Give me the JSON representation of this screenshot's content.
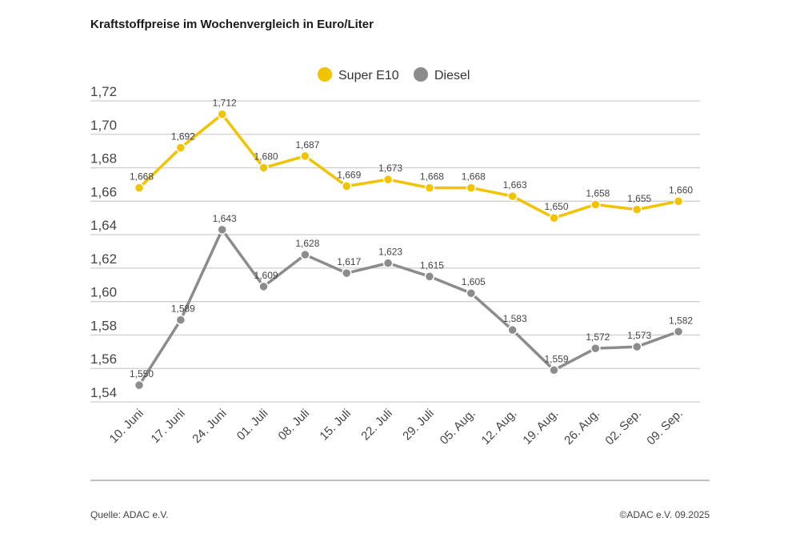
{
  "chart_data": {
    "type": "line",
    "title": "Kraftstoffpreise im Wochenvergleich in Euro/Liter",
    "xlabel": "",
    "ylabel": "",
    "categories": [
      "10. Juni",
      "17. Juni",
      "24. Juni",
      "01. Juli",
      "08. Juli",
      "15. Juli",
      "22. Juli",
      "29. Juli",
      "05. Aug.",
      "12. Aug.",
      "19. Aug.",
      "26. Aug.",
      "02. Sep.",
      "09. Sep."
    ],
    "series": [
      {
        "name": "Super E10",
        "color": "#f2c300",
        "values": [
          1.668,
          1.692,
          1.712,
          1.68,
          1.687,
          1.669,
          1.673,
          1.668,
          1.668,
          1.663,
          1.65,
          1.658,
          1.655,
          1.66
        ],
        "labels": [
          "1,668",
          "1,692",
          "1,712",
          "1,680",
          "1,687",
          "1,669",
          "1,673",
          "1,668",
          "1,668",
          "1,663",
          "1,650",
          "1,658",
          "1,655",
          "1,660"
        ]
      },
      {
        "name": "Diesel",
        "color": "#8c8c8c",
        "values": [
          1.55,
          1.589,
          1.643,
          1.609,
          1.628,
          1.617,
          1.623,
          1.615,
          1.605,
          1.583,
          1.559,
          1.572,
          1.573,
          1.582
        ],
        "labels": [
          "1,550",
          "1,589",
          "1,643",
          "1,609",
          "1,628",
          "1,617",
          "1,623",
          "1,615",
          "1,605",
          "1,583",
          "1,559",
          "1,572",
          "1,573",
          "1,582"
        ]
      }
    ],
    "yticks": [
      1.54,
      1.56,
      1.58,
      1.6,
      1.62,
      1.64,
      1.66,
      1.68,
      1.7,
      1.72
    ],
    "ytick_labels": [
      "1,54",
      "1,56",
      "1,58",
      "1,60",
      "1,62",
      "1,64",
      "1,66",
      "1,68",
      "1,70",
      "1,72"
    ],
    "ylim": [
      1.54,
      1.72
    ],
    "grid": true,
    "legend": "top-center"
  },
  "footer": {
    "source": "Quelle: ADAC e.V.",
    "copyright": "©ADAC e.V. 09.2025"
  }
}
